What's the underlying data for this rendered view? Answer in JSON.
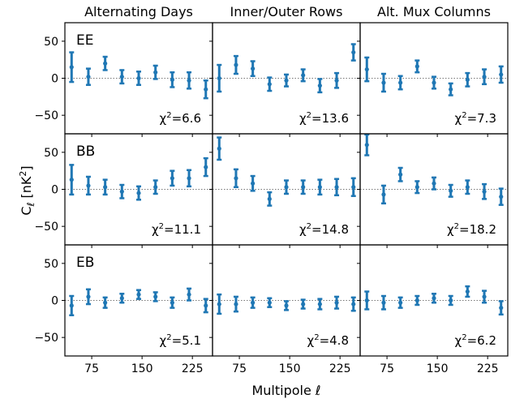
{
  "chart_data": {
    "type": "scatter",
    "columns": [
      "Alternating Days",
      "Inner/Outer Rows",
      "Alt. Mux Columns"
    ],
    "rows": [
      "EE",
      "BB",
      "EB"
    ],
    "xlabel": "Multipole ℓ",
    "ylabel": "C_ℓ [nK²]",
    "xlim": [
      35,
      255
    ],
    "ylim": [
      -75,
      75
    ],
    "xticks": [
      75,
      150,
      225
    ],
    "yticks": [
      50,
      0,
      -50
    ],
    "x": [
      45,
      70,
      95,
      120,
      145,
      170,
      195,
      220,
      245
    ],
    "marker_color": "#1f77b4",
    "panels": [
      {
        "row": "EE",
        "column": "Alternating Days",
        "chi2": "6.6",
        "y": [
          15,
          2,
          20,
          2,
          0,
          8,
          -2,
          -3,
          -15
        ],
        "err": [
          20,
          11,
          9,
          9,
          9,
          9,
          10,
          11,
          12
        ]
      },
      {
        "row": "EE",
        "column": "Inner/Outer Rows",
        "chi2": "13.6",
        "y": [
          0,
          18,
          13,
          -8,
          -3,
          4,
          -10,
          -3,
          35
        ],
        "err": [
          18,
          12,
          10,
          9,
          8,
          8,
          9,
          10,
          11
        ]
      },
      {
        "row": "EE",
        "column": "Alt. Mux Columns",
        "chi2": "7.3",
        "y": [
          12,
          -6,
          -6,
          16,
          -6,
          -15,
          -2,
          2,
          5
        ],
        "err": [
          16,
          12,
          9,
          8,
          8,
          8,
          9,
          10,
          11
        ]
      },
      {
        "row": "BB",
        "column": "Alternating Days",
        "chi2": "11.1",
        "y": [
          13,
          5,
          3,
          -3,
          -5,
          3,
          15,
          15,
          30
        ],
        "err": [
          20,
          12,
          10,
          9,
          9,
          9,
          10,
          11,
          12
        ]
      },
      {
        "row": "BB",
        "column": "Inner/Outer Rows",
        "chi2": "14.8",
        "y": [
          55,
          15,
          8,
          -13,
          3,
          3,
          3,
          3,
          3
        ],
        "err": [
          15,
          12,
          10,
          9,
          9,
          9,
          10,
          11,
          12
        ]
      },
      {
        "row": "BB",
        "column": "Alt. Mux Columns",
        "chi2": "18.2",
        "y": [
          60,
          -7,
          20,
          3,
          8,
          -2,
          3,
          -3,
          -10
        ],
        "err": [
          14,
          12,
          9,
          8,
          8,
          8,
          9,
          10,
          11
        ]
      },
      {
        "row": "EB",
        "column": "Alternating Days",
        "chi2": "5.1",
        "y": [
          -7,
          5,
          -3,
          3,
          8,
          5,
          -3,
          8,
          -7
        ],
        "err": [
          13,
          10,
          7,
          6,
          6,
          6,
          7,
          8,
          9
        ]
      },
      {
        "row": "EB",
        "column": "Inner/Outer Rows",
        "chi2": "4.8",
        "y": [
          -5,
          -5,
          -3,
          -3,
          -7,
          -5,
          -5,
          -3,
          -5
        ],
        "err": [
          13,
          10,
          7,
          6,
          6,
          6,
          7,
          8,
          9
        ]
      },
      {
        "row": "EB",
        "column": "Alt. Mux Columns",
        "chi2": "6.2",
        "y": [
          0,
          -3,
          -3,
          0,
          3,
          0,
          12,
          5,
          -10
        ],
        "err": [
          12,
          9,
          7,
          6,
          6,
          6,
          7,
          8,
          9
        ]
      }
    ]
  }
}
